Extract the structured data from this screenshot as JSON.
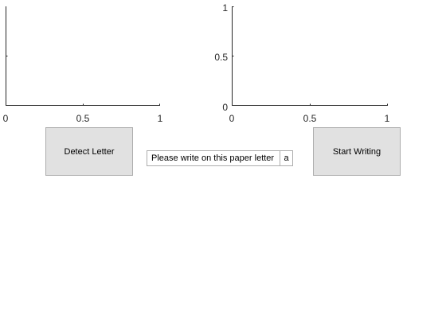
{
  "axes": [
    {
      "id": "left",
      "x_ticks": [
        "0",
        "0.5",
        "1"
      ],
      "y_ticks": [],
      "xlim": [
        0,
        1
      ],
      "ylim": [
        0,
        1
      ],
      "grid": false
    },
    {
      "id": "right",
      "x_ticks": [
        "0",
        "0.5",
        "1"
      ],
      "y_ticks": [
        "0",
        "0.5",
        "1"
      ],
      "xlim": [
        0,
        1
      ],
      "ylim": [
        0,
        1
      ],
      "grid": false
    }
  ],
  "buttons": {
    "detect_label": "Detect Letter",
    "start_label": "Start Writing"
  },
  "prompt": {
    "text": "Please write on this paper letter",
    "letter": "a"
  },
  "colors": {
    "axis": "#262626",
    "button_face": "#e1e1e1",
    "button_border": "#adadad"
  }
}
